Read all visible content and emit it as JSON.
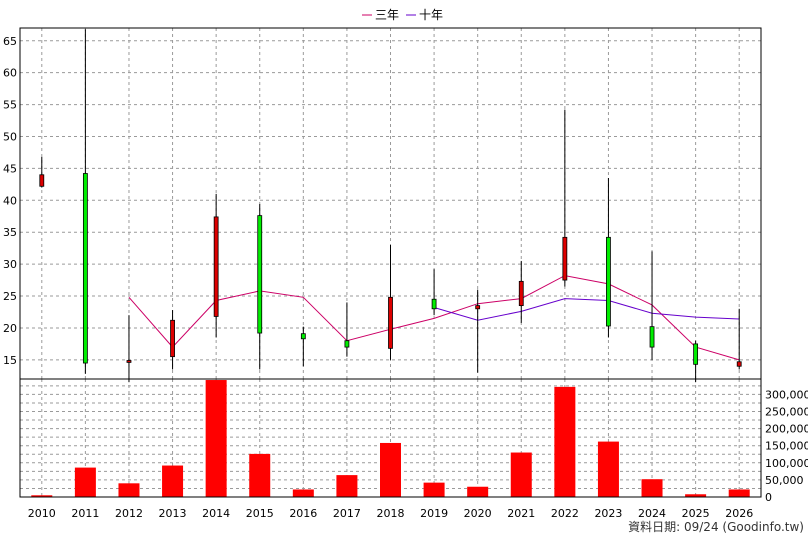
{
  "chart_data": {
    "type": "candlestick",
    "legend": [
      {
        "name": "三年",
        "color": "#cc0066"
      },
      {
        "name": "十年",
        "color": "#6600cc"
      }
    ],
    "legend_position": "top-center",
    "footer": "資料日期: 09/24  (Goodinfo.tw)",
    "grid": true,
    "categories": [
      "2010",
      "2011",
      "2012",
      "2013",
      "2014",
      "2015",
      "2016",
      "2017",
      "2018",
      "2019",
      "2020",
      "2021",
      "2022",
      "2023",
      "2024",
      "2025",
      "2026"
    ],
    "price_axis": {
      "ylim": [
        12,
        67
      ],
      "ticks": [
        "15",
        "20",
        "25",
        "30",
        "35",
        "40",
        "45",
        "50",
        "55",
        "60",
        "65"
      ],
      "tick_values": [
        15,
        20,
        25,
        30,
        35,
        40,
        45,
        50,
        55,
        60,
        65
      ]
    },
    "candles": [
      {
        "year": "2010",
        "open": 42.2,
        "close": 44.0,
        "high": 46.8,
        "low": 42.0
      },
      {
        "year": "2011",
        "open": 44.2,
        "close": 14.5,
        "high": 66.8,
        "low": 12.8
      },
      {
        "year": "2012",
        "open": 14.6,
        "close": 14.9,
        "high": 22.0,
        "low": 11.5
      },
      {
        "year": "2013",
        "open": 15.5,
        "close": 21.2,
        "high": 22.8,
        "low": 13.5
      },
      {
        "year": "2014",
        "open": 21.8,
        "close": 37.4,
        "high": 41.0,
        "low": 18.5
      },
      {
        "year": "2015",
        "open": 37.6,
        "close": 19.2,
        "high": 39.4,
        "low": 13.5
      },
      {
        "year": "2016",
        "open": 19.1,
        "close": 18.3,
        "high": 20.2,
        "low": 14.0
      },
      {
        "year": "2017",
        "open": 18.0,
        "close": 17.0,
        "high": 24.0,
        "low": 15.5
      },
      {
        "year": "2018",
        "open": 16.8,
        "close": 24.8,
        "high": 33.0,
        "low": 15.0
      },
      {
        "year": "2019",
        "open": 24.5,
        "close": 23.0,
        "high": 29.2,
        "low": 22.0
      },
      {
        "year": "2020",
        "open": 23.0,
        "close": 23.5,
        "high": 26.0,
        "low": 13.0
      },
      {
        "year": "2021",
        "open": 23.5,
        "close": 27.3,
        "high": 30.5,
        "low": 20.8
      },
      {
        "year": "2022",
        "open": 27.5,
        "close": 34.2,
        "high": 54.2,
        "low": 26.5
      },
      {
        "year": "2023",
        "open": 34.2,
        "close": 20.3,
        "high": 43.5,
        "low": 18.5
      },
      {
        "year": "2024",
        "open": 20.2,
        "close": 17.0,
        "high": 32.0,
        "low": 15.0
      },
      {
        "year": "2025",
        "open": 17.5,
        "close": 14.3,
        "high": 18.0,
        "low": 11.5
      },
      {
        "year": "2026",
        "open": 14.0,
        "close": 14.7,
        "high": 23.0,
        "low": 13.5
      }
    ],
    "series": [
      {
        "name": "三年",
        "color": "#cc0066",
        "x": [
          "2012",
          "2013",
          "2014",
          "2015",
          "2016",
          "2017",
          "2018",
          "2019",
          "2020",
          "2021",
          "2022",
          "2023",
          "2024",
          "2025",
          "2026"
        ],
        "values": [
          24.8,
          17.0,
          24.3,
          25.8,
          24.8,
          18.0,
          19.8,
          21.5,
          23.8,
          24.6,
          28.2,
          26.9,
          23.6,
          17.0,
          15.0
        ]
      },
      {
        "name": "十年",
        "color": "#6600cc",
        "x": [
          "2019",
          "2020",
          "2021",
          "2022",
          "2023",
          "2024",
          "2025",
          "2026"
        ],
        "values": [
          23.2,
          21.2,
          22.6,
          24.6,
          24.3,
          22.3,
          21.7,
          21.4
        ]
      }
    ],
    "volume_axis": {
      "ylim": [
        0,
        345000
      ],
      "ticks": [
        "0",
        "50,000",
        "100,000",
        "150,000",
        "200,000",
        "250,000",
        "300,000"
      ],
      "tick_values": [
        0,
        50000,
        100000,
        150000,
        200000,
        250000,
        300000
      ]
    },
    "volume": {
      "color": "#ff0000",
      "values": [
        5000,
        86000,
        40000,
        92000,
        342000,
        126000,
        22000,
        64000,
        158000,
        42000,
        30000,
        130000,
        322000,
        162000,
        52000,
        8000,
        22000
      ]
    }
  }
}
